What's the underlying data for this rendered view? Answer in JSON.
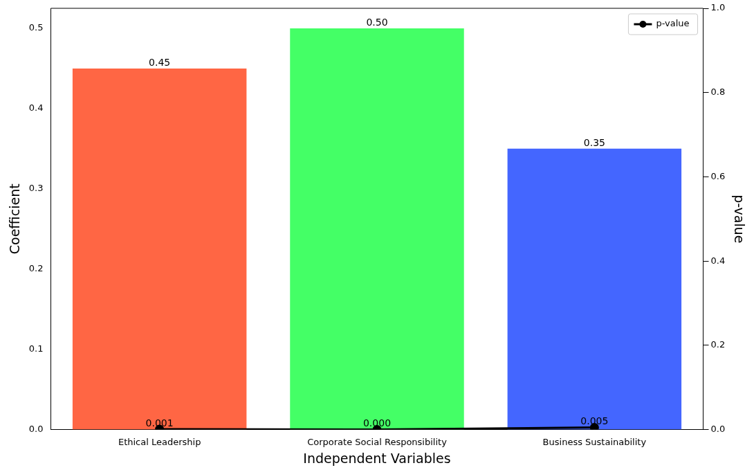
{
  "chart_data": {
    "type": "bar",
    "xlabel": "Independent Variables",
    "ylabel": "Coefficient",
    "y2label": "p-value",
    "categories": [
      "Ethical Leadership",
      "Corporate Social Responsibility",
      "Business Sustainability"
    ],
    "series": [
      {
        "colors": [
          "#ff6644",
          "#44ff66",
          "#4466ff"
        ],
        "values": [
          0.45,
          0.5,
          0.35
        ],
        "value_labels": [
          "0.45",
          "0.50",
          "0.35"
        ]
      },
      {
        "type": "line",
        "name": "p-value",
        "axis": "y2",
        "color": "#000000",
        "marker": "circle",
        "values": [
          0.001,
          0.0,
          0.005
        ],
        "value_labels": [
          "0.001",
          "0.000",
          "0.005"
        ]
      }
    ],
    "ylim": [
      0,
      0.525
    ],
    "yticks": [
      {
        "value": 0,
        "label": "0.0"
      },
      {
        "value": 0.1,
        "label": "0.1"
      },
      {
        "value": 0.2,
        "label": "0.2"
      },
      {
        "value": 0.3,
        "label": "0.3"
      },
      {
        "value": 0.4,
        "label": "0.4"
      },
      {
        "value": 0.5,
        "label": "0.5"
      }
    ],
    "y2lim": [
      0,
      1
    ],
    "y2ticks": [
      {
        "value": 0,
        "label": "0.0"
      },
      {
        "value": 0.2,
        "label": "0.2"
      },
      {
        "value": 0.4,
        "label": "0.4"
      },
      {
        "value": 0.6,
        "label": "0.6"
      },
      {
        "value": 0.8,
        "label": "0.8"
      },
      {
        "value": 1,
        "label": "1.0"
      }
    ],
    "grid": false,
    "legend": "top right"
  }
}
